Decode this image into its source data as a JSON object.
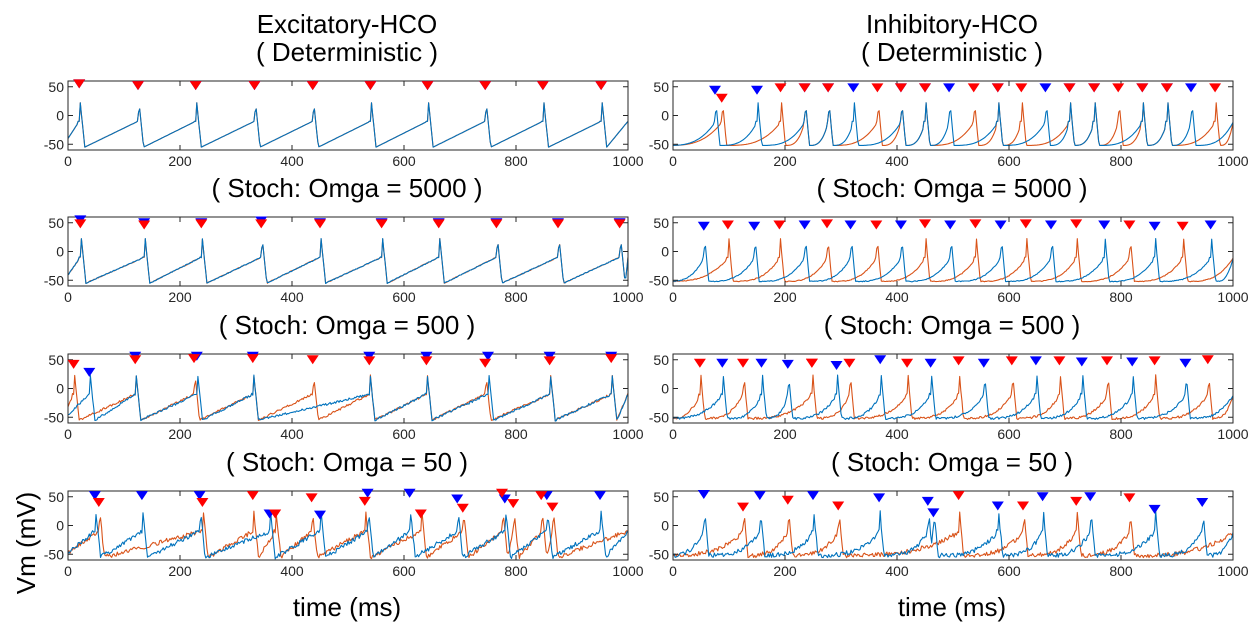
{
  "figure": {
    "ylabel": "Vm (mV)",
    "xlabel": "time (ms)",
    "colors": {
      "neuron1": "#0072BD",
      "neuron2": "#D95319",
      "marker1": "#0000FF",
      "marker2": "#FF0000"
    }
  },
  "columns": [
    {
      "header": "Excitatory-HCO"
    },
    {
      "header": "Inhibitory-HCO"
    }
  ],
  "chart_data": [
    {
      "type": "line",
      "column": 0,
      "row": 0,
      "title": "( Deterministic )",
      "xlim": [
        0,
        1000
      ],
      "ylim": [
        -60,
        60
      ],
      "xticks": [
        0,
        200,
        400,
        600,
        800,
        1000
      ],
      "yticks": [
        50,
        0,
        -50
      ],
      "xtick_labels": [
        "0",
        "200",
        "400",
        "600",
        "800",
        "1000"
      ],
      "ytick_labels": [
        "50",
        "0",
        "-50"
      ],
      "series": [
        {
          "spikes": [
            20,
            125,
            228,
            333,
            437,
            540,
            642,
            745,
            848,
            952
          ],
          "marker_y": [
            55,
            52,
            52,
            52,
            52,
            52,
            52,
            52,
            52,
            52
          ]
        },
        {
          "spikes": [
            20,
            125,
            228,
            333,
            437,
            540,
            642,
            745,
            848,
            952
          ],
          "marker_y": [
            55,
            52,
            52,
            52,
            52,
            52,
            52,
            52,
            52,
            52
          ]
        }
      ]
    },
    {
      "type": "line",
      "column": 1,
      "row": 0,
      "title": "( Deterministic )",
      "xlim": [
        0,
        1000
      ],
      "ylim": [
        -60,
        60
      ],
      "xticks": [
        0,
        200,
        400,
        600,
        800,
        1000
      ],
      "yticks": [
        50,
        0,
        -50
      ],
      "xtick_labels": [
        "0",
        "200",
        "400",
        "600",
        "800",
        "1000"
      ],
      "ytick_labels": [
        "50",
        "0",
        "-50"
      ],
      "series": [
        {
          "spikes": [
            75,
            150,
            235,
            277,
            322,
            407,
            450,
            493,
            580,
            665,
            708,
            752,
            838,
            882,
            925
          ],
          "marker_y": [
            44,
            44,
            48,
            48,
            48,
            48,
            48,
            48,
            48,
            48,
            48,
            48,
            48,
            48,
            48
          ]
        },
        {
          "spikes": [
            87,
            192,
            235,
            277,
            365,
            407,
            450,
            537,
            580,
            622,
            708,
            752,
            795,
            838,
            882,
            968
          ],
          "marker_y": [
            30,
            48,
            48,
            48,
            48,
            48,
            48,
            48,
            48,
            48,
            48,
            48,
            48,
            48,
            48,
            48
          ]
        }
      ]
    },
    {
      "type": "line",
      "column": 0,
      "row": 1,
      "title": "( Stoch: Omga = 5000 )",
      "xlim": [
        0,
        1000
      ],
      "ylim": [
        -60,
        60
      ],
      "xticks": [
        0,
        200,
        400,
        600,
        800,
        1000
      ],
      "yticks": [
        50,
        0,
        -50
      ],
      "xtick_labels": [
        "0",
        "200",
        "400",
        "600",
        "800",
        "1000"
      ],
      "ytick_labels": [
        "50",
        "0",
        "-50"
      ],
      "series": [
        {
          "spikes": [
            22,
            136,
            238,
            345,
            450,
            560,
            662,
            765,
            875,
            985
          ],
          "marker_y": [
            55,
            50,
            50,
            53,
            50,
            50,
            50,
            50,
            50,
            50
          ]
        },
        {
          "spikes": [
            22,
            136,
            238,
            345,
            450,
            560,
            662,
            765,
            875,
            985
          ],
          "marker_y": [
            48,
            46,
            48,
            48,
            48,
            48,
            48,
            48,
            48,
            48
          ]
        }
      ]
    },
    {
      "type": "line",
      "column": 1,
      "row": 1,
      "title": "( Stoch: Omga = 5000 )",
      "xlim": [
        0,
        1000
      ],
      "ylim": [
        -60,
        60
      ],
      "xticks": [
        0,
        200,
        400,
        600,
        800,
        1000
      ],
      "yticks": [
        50,
        0,
        -50
      ],
      "xtick_labels": [
        "0",
        "200",
        "400",
        "600",
        "800",
        "1000"
      ],
      "ytick_labels": [
        "50",
        "0",
        "-50"
      ],
      "series": [
        {
          "spikes": [
            55,
            145,
            235,
            317,
            407,
            495,
            585,
            675,
            770,
            860,
            960
          ],
          "marker_y": [
            44,
            44,
            46,
            46,
            46,
            46,
            46,
            46,
            46,
            44,
            46
          ]
        },
        {
          "spikes": [
            98,
            190,
            275,
            363,
            450,
            540,
            630,
            720,
            815,
            910
          ],
          "marker_y": [
            46,
            46,
            48,
            46,
            48,
            48,
            48,
            48,
            46,
            44
          ]
        }
      ]
    },
    {
      "type": "line",
      "column": 0,
      "row": 2,
      "title": "( Stoch: Omga = 500 )",
      "xlim": [
        0,
        1000
      ],
      "ylim": [
        -60,
        60
      ],
      "xticks": [
        0,
        200,
        400,
        600,
        800,
        1000
      ],
      "yticks": [
        50,
        0,
        -50
      ],
      "xtick_labels": [
        "0",
        "200",
        "400",
        "600",
        "800",
        "1000"
      ],
      "ytick_labels": [
        "50",
        "0",
        "-50"
      ],
      "series": [
        {
          "spikes": [
            38,
            120,
            230,
            330,
            538,
            640,
            750,
            860,
            970
          ],
          "marker_y": [
            28,
            56,
            56,
            56,
            56,
            56,
            56,
            56,
            56
          ]
        },
        {
          "spikes": [
            10,
            120,
            225,
            330,
            437,
            538,
            640,
            745,
            860,
            970
          ],
          "marker_y": [
            42,
            50,
            52,
            52,
            50,
            48,
            48,
            44,
            48,
            52
          ]
        }
      ]
    },
    {
      "type": "line",
      "column": 1,
      "row": 2,
      "title": "( Stoch: Omga = 500 )",
      "xlim": [
        0,
        1000
      ],
      "ylim": [
        -60,
        60
      ],
      "xticks": [
        0,
        200,
        400,
        600,
        800,
        1000
      ],
      "yticks": [
        50,
        0,
        -50
      ],
      "xtick_labels": [
        "0",
        "200",
        "400",
        "600",
        "800",
        "1000"
      ],
      "ytick_labels": [
        "50",
        "0",
        "-50"
      ],
      "series": [
        {
          "spikes": [
            88,
            158,
            205,
            292,
            370,
            460,
            555,
            648,
            730,
            820,
            915
          ],
          "marker_y": [
            44,
            44,
            42,
            40,
            50,
            44,
            44,
            48,
            46,
            46,
            44
          ]
        },
        {
          "spikes": [
            48,
            125,
            248,
            248,
            315,
            418,
            510,
            605,
            690,
            775,
            860,
            955
          ],
          "marker_y": [
            44,
            44,
            44,
            44,
            44,
            44,
            48,
            48,
            48,
            48,
            48,
            50
          ]
        }
      ]
    },
    {
      "type": "line",
      "column": 0,
      "row": 3,
      "title": "( Stoch: Omga = 50 )",
      "xlim": [
        0,
        1000
      ],
      "ylim": [
        -60,
        60
      ],
      "xticks": [
        0,
        200,
        400,
        600,
        800,
        1000
      ],
      "yticks": [
        50,
        0,
        -50
      ],
      "xtick_labels": [
        "0",
        "200",
        "400",
        "600",
        "800",
        "1000"
      ],
      "ytick_labels": [
        "50",
        "0",
        "-50"
      ],
      "series": [
        {
          "spikes": [
            48,
            132,
            235,
            360,
            450,
            535,
            610,
            695,
            780,
            855,
            950
          ],
          "marker_y": [
            52,
            52,
            52,
            20,
            18,
            56,
            56,
            46,
            46,
            52,
            52
          ]
        },
        {
          "spikes": [
            55,
            240,
            330,
            370,
            435,
            530,
            630,
            705,
            775,
            795,
            845,
            865
          ],
          "marker_y": [
            40,
            40,
            52,
            20,
            48,
            42,
            20,
            30,
            56,
            38,
            52,
            32
          ]
        }
      ]
    },
    {
      "type": "line",
      "column": 1,
      "row": 3,
      "title": "( Stoch: Omga = 50 )",
      "xlim": [
        0,
        1000
      ],
      "ylim": [
        -60,
        60
      ],
      "xticks": [
        0,
        200,
        400,
        600,
        800,
        1000
      ],
      "yticks": [
        50,
        0,
        -50
      ],
      "xtick_labels": [
        "0",
        "200",
        "400",
        "600",
        "800",
        "1000"
      ],
      "ytick_labels": [
        "50",
        "0",
        "-50"
      ],
      "series": [
        {
          "spikes": [
            55,
            155,
            250,
            368,
            455,
            465,
            580,
            660,
            745,
            860,
            945
          ],
          "marker_y": [
            54,
            52,
            52,
            48,
            42,
            22,
            34,
            50,
            50,
            28,
            40
          ]
        },
        {
          "spikes": [
            125,
            205,
            295,
            510,
            625,
            720,
            815
          ],
          "marker_y": [
            32,
            44,
            34,
            52,
            34,
            42,
            48
          ]
        }
      ]
    }
  ]
}
